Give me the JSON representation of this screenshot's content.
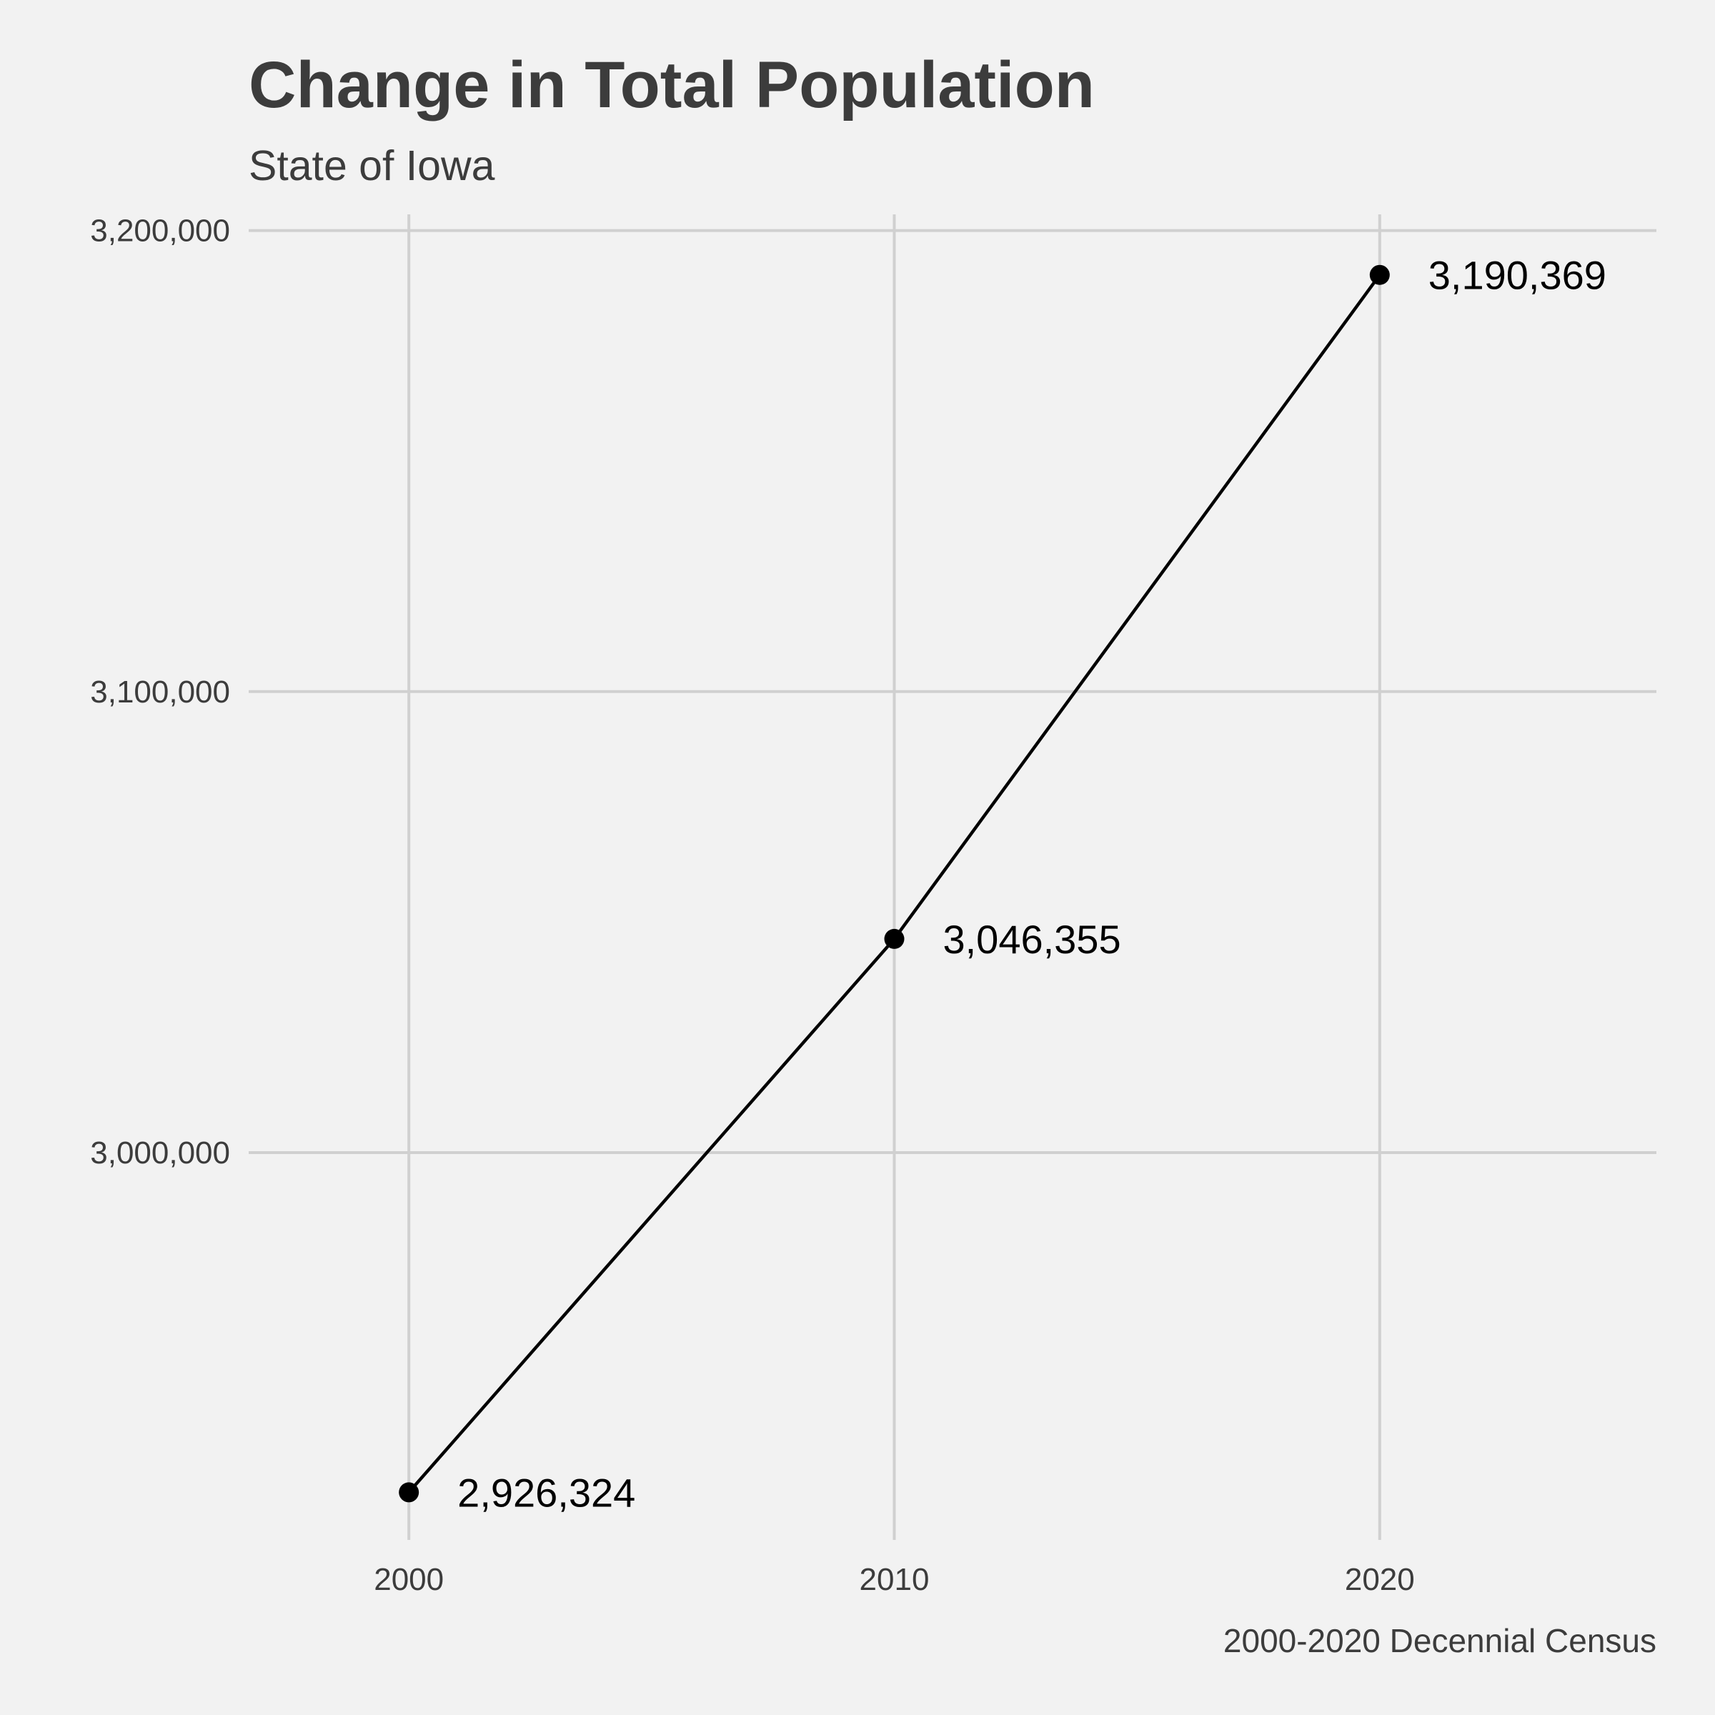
{
  "chart_data": {
    "type": "line",
    "title": "Change in Total Population",
    "subtitle": "State of Iowa",
    "caption": "2000-2020 Decennial Census",
    "xlabel": "",
    "ylabel": "",
    "x": [
      2000,
      2010,
      2020
    ],
    "x_tick_labels": [
      "2000",
      "2010",
      "2020"
    ],
    "y_ticks": [
      3000000,
      3100000,
      3200000
    ],
    "y_tick_labels": [
      "3,000,000",
      "3,100,000",
      "3,200,000"
    ],
    "xlim": [
      1996.7,
      2025.7
    ],
    "ylim": [
      2916000,
      3203500
    ],
    "grid": true,
    "legend": "none",
    "series": [
      {
        "values": [
          2926324,
          3046355,
          3190369
        ],
        "data_labels": [
          "2,926,324",
          "3,046,355",
          "3,190,369"
        ],
        "color": "#000000"
      }
    ]
  }
}
